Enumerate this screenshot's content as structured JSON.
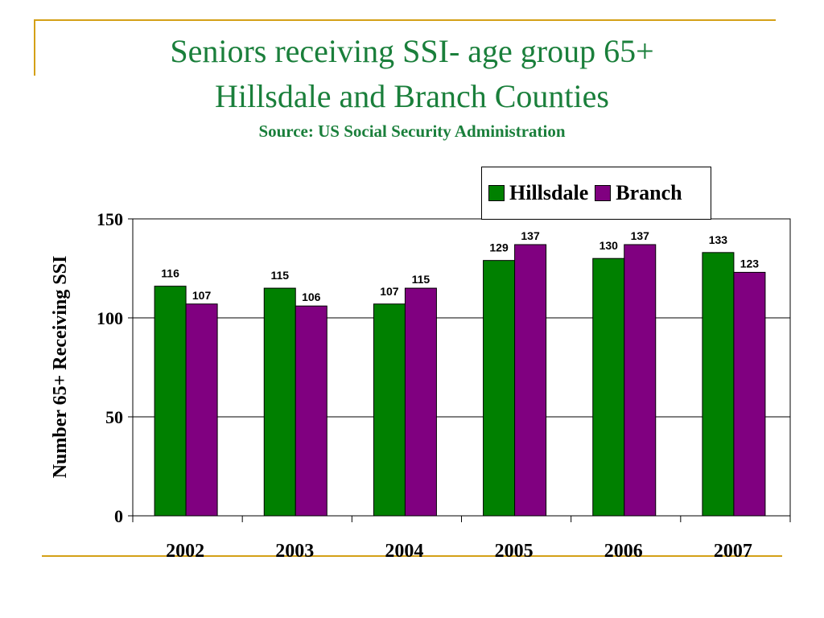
{
  "chart_data": {
    "type": "bar",
    "title": "Seniors receiving SSI- age group 65+",
    "subtitle": "Hillsdale and Branch Counties",
    "source": "Source: US Social Security Administration",
    "ylabel": "Number 65+ Receiving SSI",
    "xlabel": "",
    "categories": [
      "2002",
      "2003",
      "2004",
      "2005",
      "2006",
      "2007"
    ],
    "series": [
      {
        "name": "Hillsdale",
        "values": [
          116,
          115,
          107,
          129,
          130,
          133
        ],
        "color": "#008000"
      },
      {
        "name": "Branch",
        "values": [
          107,
          106,
          115,
          137,
          137,
          123
        ],
        "color": "#800080"
      }
    ],
    "ylim": [
      0,
      150
    ],
    "yticks": [
      0,
      50,
      100,
      150
    ],
    "grid": true,
    "legend_position": "top-right"
  },
  "theme": {
    "frame_color": "#d4a017",
    "title_color": "#1a7f3b"
  }
}
